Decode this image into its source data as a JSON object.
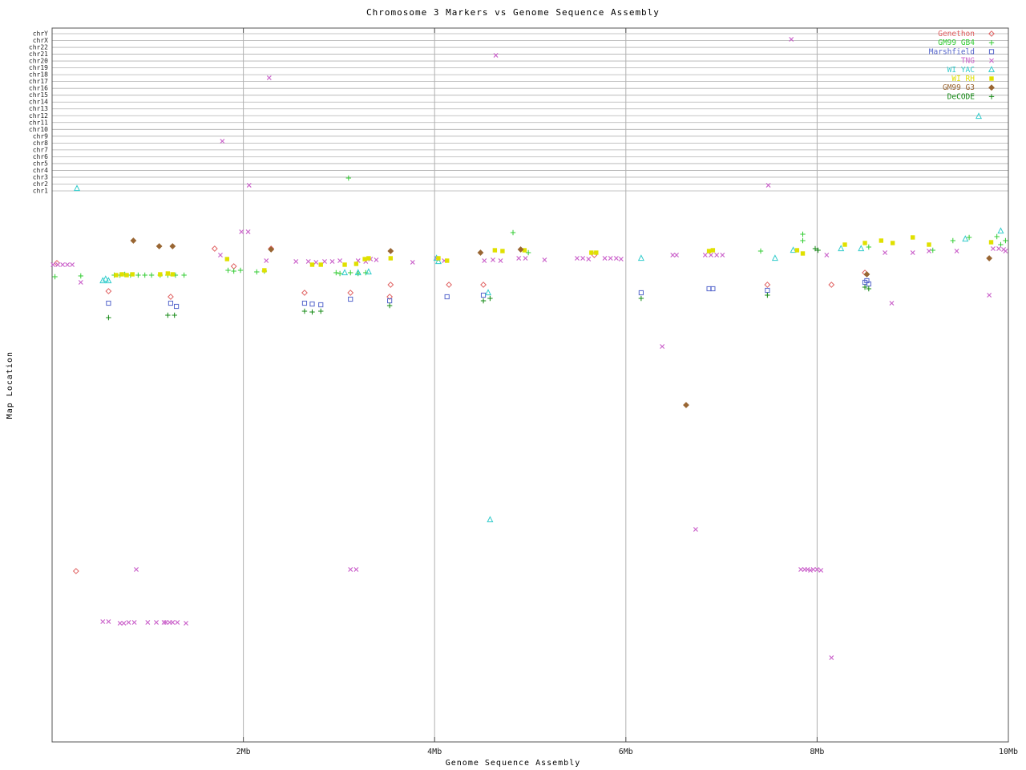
{
  "chart_data": {
    "type": "scatter",
    "title": "Chromosome 3 Markers vs Genome Sequence Assembly",
    "xlabel": "Genome Sequence Assembly",
    "ylabel": "Map Location",
    "x_unit": "Mb",
    "x_range": [
      0,
      10
    ],
    "x_ticks": [
      {
        "label": "2Mb",
        "value": 2
      },
      {
        "label": "4Mb",
        "value": 4
      },
      {
        "label": "6Mb",
        "value": 6
      },
      {
        "label": "8Mb",
        "value": 8
      },
      {
        "label": "10Mb",
        "value": 10
      }
    ],
    "y_axis_note": "Y axis is categorical map location; chromosome band gridlines run across the top of the plot, y point values below are given in screen pixels (no numeric scale shown).",
    "chromosome_labels": [
      "chrY",
      "chrX",
      "chr22",
      "chr21",
      "chr20",
      "chr19",
      "chr18",
      "chr17",
      "chr16",
      "chr15",
      "chr14",
      "chr13",
      "chr12",
      "chr11",
      "chr10",
      "chr9",
      "chr8",
      "chr7",
      "chr6",
      "chr5",
      "chr4",
      "chr3",
      "chr2",
      "chr1"
    ],
    "grid": true,
    "legend_position": "top-right",
    "series": [
      {
        "name": "Genethon",
        "color": "#e06060",
        "marker": "diamond-open",
        "points": [
          [
            0.25,
            712
          ],
          [
            0.05,
            328
          ],
          [
            0.59,
            363
          ],
          [
            1.24,
            370
          ],
          [
            1.7,
            310
          ],
          [
            1.9,
            332
          ],
          [
            2.29,
            310
          ],
          [
            2.64,
            365
          ],
          [
            3.12,
            365
          ],
          [
            3.53,
            370
          ],
          [
            3.54,
            355
          ],
          [
            4.15,
            355
          ],
          [
            4.51,
            355
          ],
          [
            5.67,
            318
          ],
          [
            7.48,
            355
          ],
          [
            8.15,
            355
          ],
          [
            8.5,
            340
          ]
        ]
      },
      {
        "name": "GM99 GB4",
        "color": "#33cc33",
        "marker": "plus",
        "points": [
          [
            0.03,
            345
          ],
          [
            0.3,
            344
          ],
          [
            0.65,
            343
          ],
          [
            0.71,
            343
          ],
          [
            0.76,
            342
          ],
          [
            0.82,
            343
          ],
          [
            0.9,
            343
          ],
          [
            0.97,
            343
          ],
          [
            1.04,
            343
          ],
          [
            1.13,
            343
          ],
          [
            1.21,
            343
          ],
          [
            1.29,
            343
          ],
          [
            1.38,
            343
          ],
          [
            1.84,
            337
          ],
          [
            1.9,
            338
          ],
          [
            1.97,
            337
          ],
          [
            2.14,
            339
          ],
          [
            2.22,
            338
          ],
          [
            2.97,
            340
          ],
          [
            3.01,
            341
          ],
          [
            3.12,
            340
          ],
          [
            3.2,
            341
          ],
          [
            3.28,
            340
          ],
          [
            3.1,
            222
          ],
          [
            4.82,
            290
          ],
          [
            4.98,
            315
          ],
          [
            7.41,
            313
          ],
          [
            7.85,
            292
          ],
          [
            7.85,
            300
          ],
          [
            8.54,
            308
          ],
          [
            9.21,
            312
          ],
          [
            9.42,
            300
          ],
          [
            9.59,
            296
          ],
          [
            9.88,
            295
          ],
          [
            9.92,
            305
          ],
          [
            9.97,
            300
          ]
        ]
      },
      {
        "name": "Marshfield",
        "color": "#5566cc",
        "marker": "square-open",
        "points": [
          [
            0.59,
            378
          ],
          [
            1.24,
            378
          ],
          [
            1.3,
            382
          ],
          [
            2.64,
            378
          ],
          [
            2.72,
            379
          ],
          [
            2.81,
            380
          ],
          [
            3.12,
            373
          ],
          [
            3.53,
            375
          ],
          [
            4.13,
            370
          ],
          [
            4.51,
            368
          ],
          [
            6.16,
            365
          ],
          [
            6.87,
            360
          ],
          [
            6.91,
            360
          ],
          [
            7.48,
            362
          ],
          [
            8.5,
            352
          ],
          [
            8.52,
            350
          ],
          [
            8.54,
            354
          ]
        ]
      },
      {
        "name": "TNG",
        "color": "#cc66cc",
        "marker": "x",
        "points": [
          [
            0.01,
            330
          ],
          [
            0.06,
            330
          ],
          [
            0.11,
            330
          ],
          [
            0.16,
            330
          ],
          [
            0.21,
            330
          ],
          [
            0.3,
            352
          ],
          [
            0.53,
            775
          ],
          [
            0.59,
            775
          ],
          [
            0.71,
            777
          ],
          [
            0.75,
            777
          ],
          [
            0.8,
            776
          ],
          [
            0.86,
            776
          ],
          [
            0.88,
            710
          ],
          [
            1.0,
            776
          ],
          [
            1.09,
            776
          ],
          [
            1.17,
            776
          ],
          [
            1.19,
            776
          ],
          [
            1.23,
            776
          ],
          [
            1.26,
            776
          ],
          [
            1.31,
            776
          ],
          [
            1.4,
            777
          ],
          [
            1.76,
            318
          ],
          [
            1.78,
            176
          ],
          [
            1.98,
            289
          ],
          [
            2.05,
            289
          ],
          [
            2.06,
            231
          ],
          [
            2.24,
            325
          ],
          [
            2.27,
            97
          ],
          [
            2.55,
            326
          ],
          [
            2.68,
            326
          ],
          [
            2.76,
            327
          ],
          [
            2.85,
            326
          ],
          [
            2.93,
            326
          ],
          [
            3.01,
            325
          ],
          [
            3.12,
            710
          ],
          [
            3.18,
            710
          ],
          [
            3.2,
            325
          ],
          [
            3.28,
            326
          ],
          [
            3.33,
            323
          ],
          [
            3.39,
            324
          ],
          [
            3.77,
            327
          ],
          [
            4.02,
            322
          ],
          [
            4.1,
            325
          ],
          [
            4.52,
            325
          ],
          [
            4.61,
            324
          ],
          [
            4.64,
            69
          ],
          [
            4.69,
            325
          ],
          [
            4.88,
            322
          ],
          [
            4.95,
            322
          ],
          [
            5.15,
            324
          ],
          [
            5.49,
            322
          ],
          [
            5.55,
            322
          ],
          [
            5.61,
            323
          ],
          [
            5.78,
            322
          ],
          [
            5.84,
            322
          ],
          [
            5.9,
            322
          ],
          [
            5.95,
            323
          ],
          [
            6.38,
            432
          ],
          [
            6.49,
            318
          ],
          [
            6.53,
            318
          ],
          [
            6.73,
            660
          ],
          [
            6.83,
            318
          ],
          [
            6.89,
            318
          ],
          [
            6.95,
            318
          ],
          [
            7.01,
            318
          ],
          [
            7.49,
            231
          ],
          [
            7.73,
            49
          ],
          [
            7.83,
            710
          ],
          [
            7.87,
            710
          ],
          [
            7.9,
            710
          ],
          [
            7.93,
            711
          ],
          [
            7.96,
            710
          ],
          [
            8.0,
            710
          ],
          [
            8.04,
            711
          ],
          [
            8.1,
            318
          ],
          [
            8.15,
            820
          ],
          [
            8.71,
            315
          ],
          [
            8.78,
            378
          ],
          [
            9.0,
            315
          ],
          [
            9.17,
            313
          ],
          [
            9.46,
            313
          ],
          [
            9.8,
            368
          ],
          [
            9.84,
            310
          ],
          [
            9.9,
            310
          ],
          [
            9.95,
            311
          ],
          [
            9.97,
            313
          ]
        ]
      },
      {
        "name": "WI YAC",
        "color": "#33cccc",
        "marker": "triangle-open",
        "points": [
          [
            0.26,
            235
          ],
          [
            0.53,
            350
          ],
          [
            0.56,
            348
          ],
          [
            0.59,
            350
          ],
          [
            3.06,
            340
          ],
          [
            3.2,
            340
          ],
          [
            3.31,
            339
          ],
          [
            4.02,
            322
          ],
          [
            4.04,
            326
          ],
          [
            4.56,
            365
          ],
          [
            4.58,
            648
          ],
          [
            6.16,
            322
          ],
          [
            7.56,
            322
          ],
          [
            7.75,
            312
          ],
          [
            8.25,
            310
          ],
          [
            8.46,
            310
          ],
          [
            9.55,
            298
          ],
          [
            9.69,
            145
          ],
          [
            9.92,
            288
          ]
        ]
      },
      {
        "name": "WI RH",
        "color": "#e0e000",
        "marker": "square-filled",
        "points": [
          [
            0.67,
            343
          ],
          [
            0.73,
            342
          ],
          [
            0.78,
            343
          ],
          [
            0.84,
            342
          ],
          [
            1.13,
            342
          ],
          [
            1.21,
            341
          ],
          [
            1.26,
            342
          ],
          [
            1.83,
            323
          ],
          [
            2.22,
            337
          ],
          [
            2.72,
            330
          ],
          [
            2.81,
            330
          ],
          [
            3.06,
            330
          ],
          [
            3.18,
            329
          ],
          [
            3.27,
            323
          ],
          [
            3.31,
            322
          ],
          [
            3.54,
            322
          ],
          [
            4.04,
            322
          ],
          [
            4.13,
            325
          ],
          [
            4.63,
            312
          ],
          [
            4.71,
            313
          ],
          [
            4.94,
            312
          ],
          [
            5.64,
            315
          ],
          [
            5.69,
            315
          ],
          [
            6.87,
            313
          ],
          [
            6.91,
            312
          ],
          [
            7.79,
            312
          ],
          [
            7.85,
            316
          ],
          [
            8.29,
            305
          ],
          [
            8.5,
            303
          ],
          [
            8.67,
            300
          ],
          [
            8.79,
            303
          ],
          [
            9.0,
            296
          ],
          [
            9.17,
            305
          ],
          [
            9.82,
            302
          ]
        ]
      },
      {
        "name": "GM99 G3",
        "color": "#996633",
        "marker": "diamond-filled",
        "points": [
          [
            0.85,
            300
          ],
          [
            1.12,
            307
          ],
          [
            1.26,
            307
          ],
          [
            2.29,
            311
          ],
          [
            3.54,
            313
          ],
          [
            4.48,
            315
          ],
          [
            4.9,
            311
          ],
          [
            6.63,
            505
          ],
          [
            8.52,
            342
          ],
          [
            9.8,
            322
          ]
        ]
      },
      {
        "name": "DeCODE",
        "color": "#118811",
        "marker": "plus",
        "points": [
          [
            0.59,
            396
          ],
          [
            1.21,
            393
          ],
          [
            1.28,
            393
          ],
          [
            2.64,
            388
          ],
          [
            2.72,
            389
          ],
          [
            2.81,
            388
          ],
          [
            3.53,
            381
          ],
          [
            4.51,
            375
          ],
          [
            4.58,
            372
          ],
          [
            6.16,
            372
          ],
          [
            7.48,
            368
          ],
          [
            7.98,
            310
          ],
          [
            8.01,
            312
          ],
          [
            8.5,
            358
          ],
          [
            8.54,
            360
          ]
        ]
      }
    ]
  }
}
